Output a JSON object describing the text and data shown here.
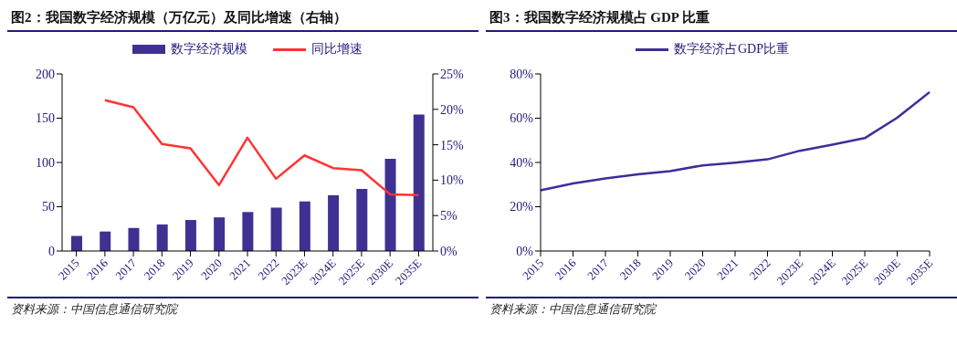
{
  "chart_data": [
    {
      "type": "bar",
      "title": "图2：我国数字经济规模（万亿元）及同比增速（右轴）",
      "categories": [
        "2015",
        "2016",
        "2017",
        "2018",
        "2019",
        "2020",
        "2021",
        "2022",
        "2023E",
        "2024E",
        "2025E",
        "2030E",
        "2035E"
      ],
      "series": [
        {
          "name": "数字经济规模",
          "color": "#3f3192",
          "values": [
            17,
            22,
            26,
            30,
            35,
            38,
            44,
            49,
            56,
            63,
            70,
            104,
            154
          ]
        },
        {
          "name": "同比增速",
          "type": "line",
          "axis": "y2",
          "color": "#ff3333",
          "values": [
            null,
            21.3,
            20.3,
            15.1,
            14.5,
            9.3,
            16.0,
            10.2,
            13.5,
            11.7,
            11.4,
            8.0,
            7.9
          ]
        }
      ],
      "ylim": [
        0,
        200
      ],
      "yticks": [
        0,
        50,
        100,
        150,
        200
      ],
      "y2lim": [
        0,
        25
      ],
      "y2ticks": [
        {
          "value": 0,
          "label": "0%"
        },
        {
          "value": 5,
          "label": "5%"
        },
        {
          "value": 10,
          "label": "10%"
        },
        {
          "value": 15,
          "label": "15%"
        },
        {
          "value": 20,
          "label": "20%"
        },
        {
          "value": 25,
          "label": "25%"
        }
      ],
      "marker": "none",
      "legend": "top",
      "annotations": [
        "资料来源：中国信息通信研究院"
      ]
    },
    {
      "type": "line",
      "title": "图3：我国数字经济规模占 GDP 比重",
      "categories": [
        "2015",
        "2016",
        "2017",
        "2018",
        "2019",
        "2020",
        "2021",
        "2022",
        "2023E",
        "2024E",
        "2025E",
        "2030E",
        "2035E"
      ],
      "series": [
        {
          "name": "数字经济占GDP比重",
          "color": "#3f2d9a",
          "values": [
            27.4,
            30.5,
            32.8,
            34.6,
            36.1,
            38.7,
            39.9,
            41.4,
            45.3,
            48,
            51,
            60.2,
            71.8
          ]
        }
      ],
      "ylim": [
        0,
        80
      ],
      "yticks": [
        {
          "value": 0,
          "label": "0%"
        },
        {
          "value": 20,
          "label": "20%"
        },
        {
          "value": 40,
          "label": "40%"
        },
        {
          "value": 60,
          "label": "60%"
        },
        {
          "value": 80,
          "label": "80%"
        }
      ],
      "marker": "none",
      "legend": "top",
      "annotations": [
        "资料来源：中国信息通信研究院"
      ]
    }
  ]
}
